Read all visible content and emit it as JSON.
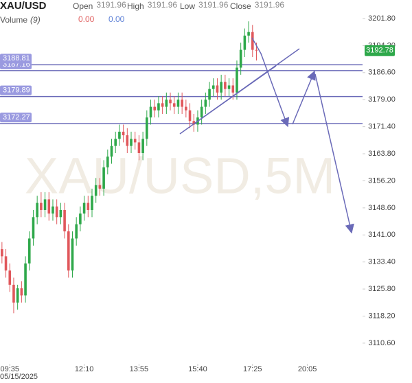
{
  "chart_data": {
    "type": "candlestick",
    "symbol": "XAU/USD",
    "header_fields": [
      {
        "label": "Open",
        "value": 3191.96
      },
      {
        "label": "High",
        "value": 3191.96
      },
      {
        "label": "Low",
        "value": 3191.96
      },
      {
        "label": "Close",
        "value": 3191.96
      }
    ],
    "volume": {
      "label": "Volume",
      "param": "(9)",
      "values": [
        "0.00",
        "0.00"
      ],
      "colors": [
        "#e06060",
        "#5b7fd6"
      ]
    },
    "watermark": "XAU/USD,5M",
    "date_label": "05/15/2025",
    "up_color": "#2ea84a",
    "down_color": "#e0575b",
    "level_color": "#6a6ab8",
    "last_price": 3192.78,
    "last_price_color": "#2ea84a",
    "levels": [
      3187.16,
      3188.81,
      3179.89,
      3172.27
    ],
    "open": [
      3137,
      3135,
      3131,
      3127,
      3122,
      3126,
      3124,
      3133,
      3140,
      3146,
      3150,
      3148,
      3151,
      3147,
      3149,
      3146,
      3148,
      3142,
      3131,
      3140,
      3144,
      3147,
      3150,
      3148,
      3152,
      3155,
      3154,
      3160,
      3163,
      3166,
      3168,
      3170,
      3169,
      3166,
      3168,
      3167,
      3164,
      3168,
      3174,
      3177,
      3176,
      3178,
      3177,
      3179,
      3178,
      3177,
      3179,
      3177,
      3176,
      3173,
      3172,
      3174,
      3177,
      3179,
      3182,
      3183,
      3181,
      3184,
      3182,
      3183,
      3181,
      3188,
      3193,
      3197,
      3198,
      3193
    ],
    "high": [
      3139,
      3137,
      3133,
      3129,
      3127,
      3128,
      3135,
      3142,
      3148,
      3152,
      3153,
      3153,
      3153,
      3151,
      3151,
      3150,
      3150,
      3144,
      3142,
      3146,
      3149,
      3152,
      3152,
      3154,
      3157,
      3157,
      3162,
      3165,
      3168,
      3170,
      3172,
      3172,
      3171,
      3170,
      3170,
      3169,
      3170,
      3176,
      3179,
      3179,
      3180,
      3180,
      3181,
      3181,
      3180,
      3181,
      3181,
      3179,
      3178,
      3175,
      3176,
      3179,
      3181,
      3184,
      3185,
      3185,
      3186,
      3186,
      3185,
      3185,
      3190,
      3195,
      3199,
      3201,
      3200,
      3195
    ],
    "low": [
      3133,
      3129,
      3125,
      3119,
      3120,
      3122,
      3122,
      3131,
      3138,
      3144,
      3146,
      3146,
      3145,
      3145,
      3144,
      3144,
      3140,
      3129,
      3129,
      3138,
      3142,
      3145,
      3146,
      3146,
      3150,
      3152,
      3152,
      3158,
      3161,
      3164,
      3166,
      3167,
      3164,
      3164,
      3165,
      3162,
      3162,
      3166,
      3172,
      3174,
      3174,
      3175,
      3175,
      3176,
      3175,
      3175,
      3175,
      3174,
      3171,
      3170,
      3170,
      3172,
      3175,
      3177,
      3180,
      3179,
      3179,
      3180,
      3180,
      3179,
      3179,
      3186,
      3191,
      3195,
      3191,
      3190
    ],
    "close": [
      3135,
      3131,
      3127,
      3122,
      3126,
      3124,
      3133,
      3140,
      3146,
      3150,
      3148,
      3151,
      3147,
      3149,
      3146,
      3148,
      3142,
      3131,
      3140,
      3144,
      3147,
      3150,
      3148,
      3152,
      3155,
      3154,
      3160,
      3163,
      3166,
      3168,
      3170,
      3169,
      3166,
      3168,
      3167,
      3164,
      3168,
      3174,
      3177,
      3176,
      3178,
      3177,
      3179,
      3178,
      3177,
      3179,
      3177,
      3176,
      3173,
      3172,
      3174,
      3177,
      3179,
      3182,
      3183,
      3181,
      3184,
      3182,
      3183,
      3181,
      3188,
      3193,
      3197,
      3198,
      3193,
      3192.78
    ],
    "xlim": [
      -0.5,
      92.1
    ],
    "xticks": [
      {
        "value": 2,
        "label": "09:35"
      },
      {
        "value": 21,
        "label": "12:10"
      },
      {
        "value": 35,
        "label": "13:55"
      },
      {
        "value": 50,
        "label": "15:40"
      },
      {
        "value": 64,
        "label": "17:25"
      },
      {
        "value": 78,
        "label": "20:05"
      }
    ],
    "ylim": [
      3104.8,
      3207.0
    ],
    "yticks": [
      {
        "value": 3110.6,
        "label": "3110.60"
      },
      {
        "value": 3118.2,
        "label": "3118.20"
      },
      {
        "value": 3125.8,
        "label": "3125.80"
      },
      {
        "value": 3133.4,
        "label": "3133.40"
      },
      {
        "value": 3141.0,
        "label": "3141.00"
      },
      {
        "value": 3148.6,
        "label": "3148.60"
      },
      {
        "value": 3156.2,
        "label": "3156.20"
      },
      {
        "value": 3163.8,
        "label": "3163.80"
      },
      {
        "value": 3171.4,
        "label": "3171.40"
      },
      {
        "value": 3179.0,
        "label": "3179.00"
      },
      {
        "value": 3186.6,
        "label": "3186.60"
      },
      {
        "value": 3194.2,
        "label": "3194.20"
      },
      {
        "value": 3201.8,
        "label": "3201.80"
      }
    ]
  }
}
